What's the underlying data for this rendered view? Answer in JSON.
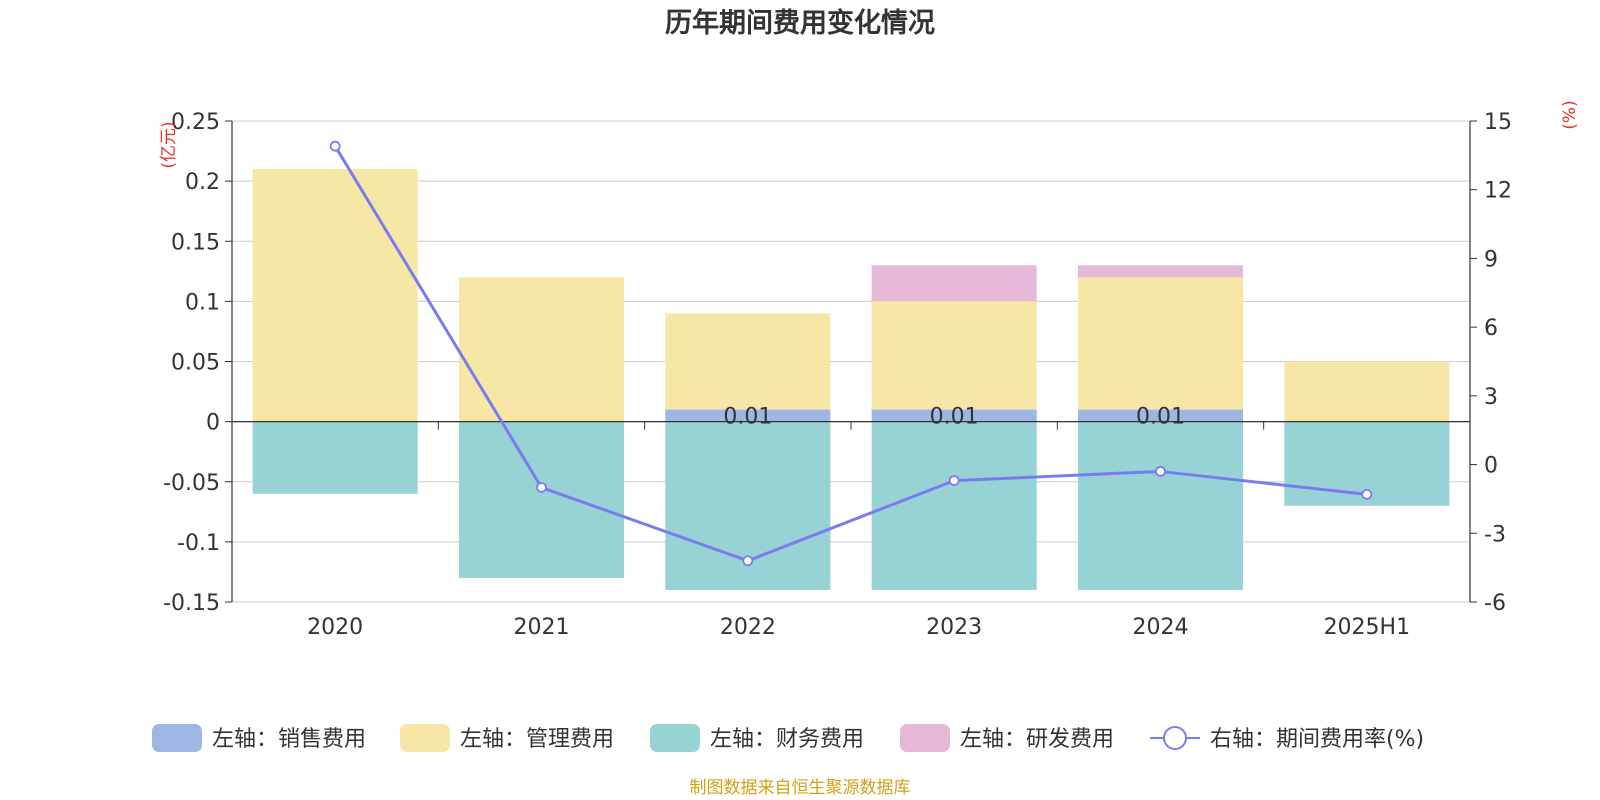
{
  "chart_data": {
    "type": "bar",
    "title": "历年期间费用变化情况",
    "categories": [
      "2020",
      "2021",
      "2022",
      "2023",
      "2024",
      "2025H1"
    ],
    "y_left": {
      "unit_label": "(亿元)",
      "range": [
        -0.15,
        0.25
      ],
      "ticks": [
        "0.25",
        "0.2",
        "0.15",
        "0.1",
        "0.05",
        "0",
        "-0.05",
        "-0.1",
        "-0.15"
      ]
    },
    "y_right": {
      "unit_label": "(%)",
      "range": [
        -6,
        15
      ],
      "ticks": [
        "15",
        "12",
        "9",
        "6",
        "3",
        "0",
        "-3",
        "-6"
      ]
    },
    "series": [
      {
        "name": "左轴：销售费用",
        "type": "bar",
        "color": "#9DB6E3",
        "values": [
          0,
          0,
          0.01,
          0.01,
          0.01,
          0
        ],
        "data_labels": [
          "",
          "",
          "0.01",
          "0.01",
          "0.01",
          ""
        ]
      },
      {
        "name": "左轴：管理费用",
        "type": "bar",
        "color": "#F7E7A7",
        "values": [
          0.21,
          0.12,
          0.08,
          0.09,
          0.11,
          0.05
        ]
      },
      {
        "name": "左轴：财务费用",
        "type": "bar",
        "color": "#97D3D4",
        "values": [
          -0.06,
          -0.13,
          -0.14,
          -0.14,
          -0.14,
          -0.07
        ]
      },
      {
        "name": "左轴：研发费用",
        "type": "bar",
        "color": "#E6B9D8",
        "values": [
          0,
          0,
          0,
          0.03,
          0.01,
          0
        ]
      },
      {
        "name": "右轴：期间费用率(%)",
        "type": "line",
        "axis": "right",
        "color": "#7B7BF0",
        "values": [
          13.9,
          -1.0,
          -4.2,
          -0.7,
          -0.3,
          -1.3
        ]
      }
    ],
    "legend_position": "bottom",
    "grid": true,
    "source_note": "制图数据来自恒生聚源数据库",
    "colors": {
      "title": "#333333",
      "axis_unit": "#E8302A",
      "source_note": "#D4A017",
      "grid": "#CCCCCC",
      "axis": "#333333"
    }
  }
}
